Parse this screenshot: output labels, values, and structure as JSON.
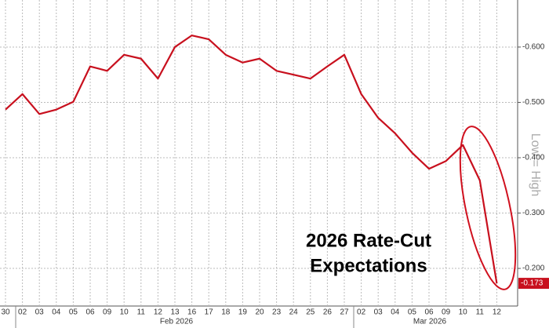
{
  "chart_data": {
    "type": "line",
    "annotation": [
      "2026 Rate-Cut",
      "Expectations"
    ],
    "y_axis_label": "Low = High",
    "x_group_labels": [
      "Feb 2026",
      "Mar 2026"
    ],
    "categories": [
      "30",
      "02",
      "03",
      "04",
      "05",
      "06",
      "09",
      "10",
      "11",
      "12",
      "13",
      "16",
      "17",
      "18",
      "19",
      "20",
      "23",
      "24",
      "25",
      "26",
      "27",
      "02",
      "03",
      "04",
      "05",
      "06",
      "09",
      "10",
      "11",
      "12"
    ],
    "series": [
      {
        "color": "#c8101e",
        "values": [
          -0.487,
          -0.515,
          -0.479,
          -0.487,
          -0.501,
          -0.565,
          -0.557,
          -0.586,
          -0.579,
          -0.543,
          -0.6,
          -0.621,
          -0.614,
          -0.586,
          -0.572,
          -0.579,
          -0.557,
          -0.55,
          -0.543,
          -0.565,
          -0.586,
          -0.515,
          -0.472,
          -0.444,
          -0.409,
          -0.38,
          -0.394,
          -0.423,
          -0.359,
          -0.173
        ]
      }
    ],
    "ylim": [
      -0.685,
      -0.132
    ],
    "y_inverted": true,
    "yticks": [
      {
        "value": -0.6,
        "label": "-0.600"
      },
      {
        "value": -0.5,
        "label": "-0.500"
      },
      {
        "value": -0.4,
        "label": "-0.400"
      },
      {
        "value": -0.3,
        "label": "-0.300"
      },
      {
        "value": -0.2,
        "label": "-0.200"
      }
    ],
    "grid": true
  }
}
